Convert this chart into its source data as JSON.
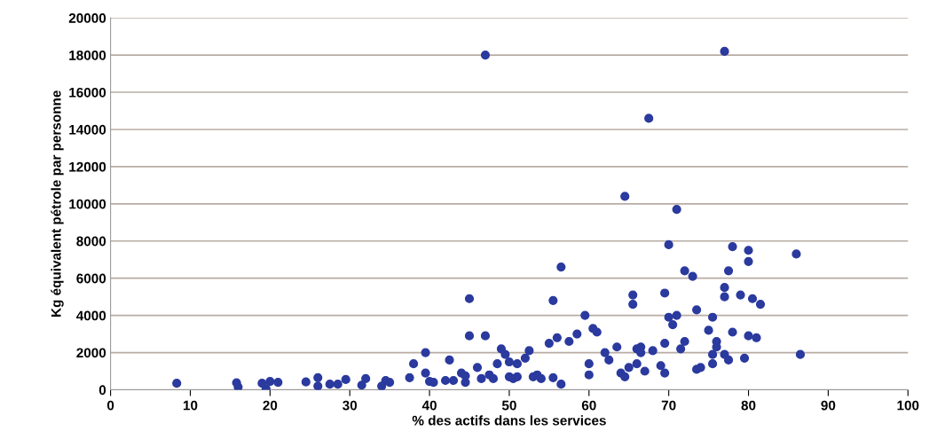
{
  "chart_data": {
    "type": "scatter",
    "xlabel": "% des actifs dans les services",
    "ylabel": "Kg équivalent pétrole par personne",
    "xlim": [
      0,
      100
    ],
    "xticks": [
      0,
      10,
      20,
      30,
      40,
      50,
      60,
      70,
      80,
      90,
      100
    ],
    "ylim": [
      0,
      20000
    ],
    "yticks": [
      0,
      2000,
      4000,
      6000,
      8000,
      10000,
      12000,
      14000,
      16000,
      18000,
      20000
    ],
    "grid": "y",
    "marker": "circle",
    "legend": false,
    "series": [
      {
        "color": "#2b3a9e",
        "x": [
          8.3,
          15.8,
          16,
          19,
          19.5,
          20,
          21,
          24.5,
          26,
          26,
          27.5,
          28.5,
          29.5,
          31.5,
          32,
          34,
          34.5,
          35,
          37.5,
          38,
          39.5,
          39.5,
          40,
          40.5,
          42,
          42.5,
          43,
          44,
          44.5,
          44.5,
          45,
          45,
          46,
          46.5,
          47,
          47,
          47.5,
          48,
          48.5,
          49,
          49.5,
          50,
          50,
          50.5,
          51,
          51,
          52,
          52.5,
          53,
          53.5,
          54,
          55,
          55.5,
          55.5,
          56,
          56.5,
          56.5,
          57.5,
          58.5,
          59.5,
          60,
          60,
          60.5,
          61,
          62,
          62.5,
          63.5,
          64,
          64.5,
          64.5,
          65,
          65.5,
          65.5,
          66,
          66,
          66.5,
          66.5,
          67,
          67.5,
          68,
          69,
          69.5,
          69.5,
          69.5,
          70,
          70,
          70.5,
          71,
          71,
          71.5,
          72,
          72,
          73,
          73.5,
          73.5,
          74,
          75,
          75.5,
          75.5,
          75.5,
          76,
          76,
          77,
          77,
          77,
          77,
          77.5,
          77.5,
          78,
          78,
          79,
          79.5,
          80,
          80,
          80,
          80.5,
          81,
          81.5,
          86,
          86.5
        ],
        "values": [
          350,
          380,
          150,
          350,
          50,
          450,
          400,
          420,
          650,
          200,
          300,
          300,
          550,
          250,
          600,
          200,
          500,
          400,
          650,
          1400,
          2000,
          900,
          450,
          400,
          500,
          1600,
          500,
          900,
          750,
          400,
          4900,
          2900,
          1200,
          600,
          2900,
          18000,
          800,
          600,
          1400,
          2200,
          1900,
          700,
          1500,
          600,
          1400,
          700,
          1700,
          2100,
          700,
          800,
          600,
          2500,
          650,
          4800,
          2800,
          6600,
          300,
          2600,
          3000,
          4000,
          1400,
          800,
          3300,
          3100,
          2000,
          1600,
          2300,
          900,
          700,
          10400,
          1200,
          5100,
          4600,
          2200,
          1400,
          2300,
          2000,
          1000,
          14600,
          2100,
          1300,
          900,
          5200,
          2500,
          3900,
          7800,
          3500,
          9700,
          4000,
          2200,
          2600,
          6400,
          6100,
          4300,
          1100,
          1200,
          3200,
          3900,
          1900,
          1400,
          2600,
          2300,
          18200,
          5500,
          5000,
          1900,
          6400,
          1600,
          7700,
          3100,
          5100,
          1700,
          7500,
          6900,
          2900,
          4900,
          2800,
          4600,
          7300,
          1900
        ]
      }
    ]
  }
}
